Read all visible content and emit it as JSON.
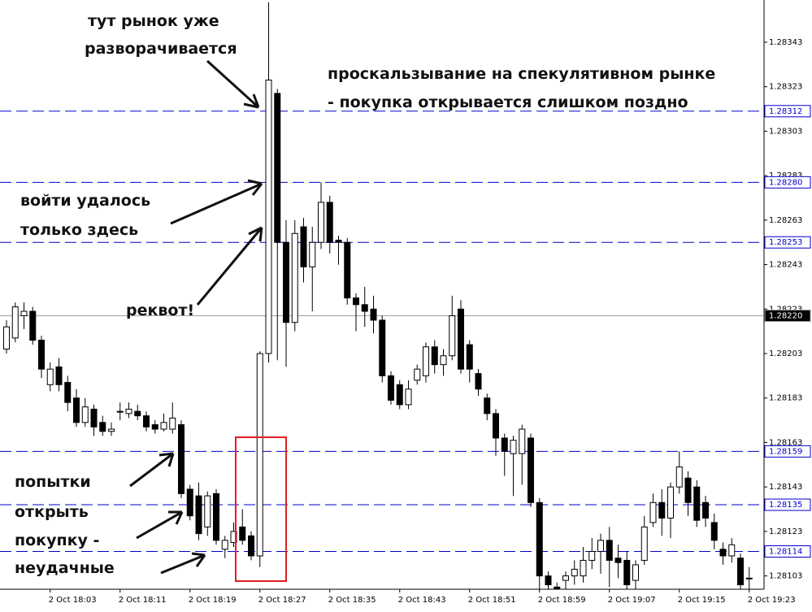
{
  "chart_data": {
    "type": "candlestick",
    "categories": [
      null,
      null,
      null,
      null,
      null,
      "2 Oct 18:03",
      null,
      null,
      null,
      null,
      null,
      null,
      null,
      "2 Oct 18:11",
      null,
      null,
      null,
      null,
      null,
      null,
      null,
      "2 Oct 18:19",
      null,
      null,
      null,
      null,
      null,
      null,
      null,
      "2 Oct 18:27",
      null,
      null,
      null,
      null,
      null,
      null,
      null,
      "2 Oct 18:35",
      null,
      null,
      null,
      null,
      null,
      null,
      null,
      "2 Oct 18:43",
      null,
      null,
      null,
      null,
      null,
      null,
      null,
      "2 Oct 18:51",
      null,
      null,
      null,
      null,
      null,
      null,
      null,
      "2 Oct 18:59",
      null,
      null,
      null,
      null,
      null,
      null,
      null,
      "2 Oct 19:07",
      null,
      null,
      null,
      null,
      null,
      null,
      null,
      "2 Oct 19:15",
      null,
      null,
      null,
      null,
      null,
      null,
      null,
      "2 Oct 19:23"
    ],
    "open": [
      1.28205,
      1.2821,
      1.2822,
      1.28222,
      1.28209,
      1.28189,
      1.28197,
      1.2819,
      1.28183,
      1.28172,
      1.28178,
      1.28172,
      1.28168,
      1.28177,
      1.28176,
      1.28177,
      1.28175,
      1.28171,
      1.28169,
      1.28169,
      1.28171,
      1.28142,
      1.28139,
      1.28125,
      1.2814,
      1.28115,
      1.28118,
      1.28125,
      1.28121,
      1.28112,
      1.28203,
      1.2832,
      1.28253,
      1.28217,
      1.2826,
      1.28242,
      1.28253,
      1.28271,
      1.28254,
      1.28253,
      1.28228,
      1.28225,
      1.28223,
      1.28218,
      1.28193,
      1.28189,
      1.2818,
      1.28191,
      1.28193,
      1.28206,
      1.28198,
      1.28202,
      1.28223,
      1.28207,
      1.28194,
      1.28183,
      1.28176,
      1.28165,
      1.28158,
      1.28158,
      1.28165,
      1.28136,
      1.28103,
      1.28098,
      1.28101,
      1.28103,
      1.28103,
      1.2811,
      1.28114,
      1.28119,
      1.28111,
      1.2811,
      1.28101,
      1.2811,
      1.28127,
      1.28136,
      1.28129,
      1.28143,
      1.28147,
      1.28143,
      1.28136,
      1.28127,
      1.28115,
      1.28112,
      1.28111,
      1.28102
    ],
    "high": [
      1.28218,
      1.28226,
      1.28226,
      1.28224,
      1.28211,
      1.28199,
      1.28201,
      1.28193,
      1.28187,
      1.28183,
      1.2818,
      1.28175,
      1.28172,
      1.28181,
      1.28181,
      1.2818,
      1.28177,
      1.28173,
      1.28176,
      1.28181,
      1.28173,
      1.28144,
      1.28145,
      1.28141,
      1.28142,
      1.28121,
      1.28127,
      1.28133,
      1.28123,
      1.28204,
      1.28361,
      1.28322,
      1.28263,
      1.28263,
      1.28264,
      1.2826,
      1.2828,
      1.28274,
      1.28256,
      1.28255,
      1.2823,
      1.28233,
      1.28229,
      1.2822,
      1.28195,
      1.28191,
      1.28191,
      1.28198,
      1.28208,
      1.28209,
      1.28205,
      1.28229,
      1.28227,
      1.28209,
      1.28196,
      1.28185,
      1.28178,
      1.28167,
      1.28166,
      1.28171,
      1.28167,
      1.28138,
      1.28105,
      1.281,
      1.28105,
      1.2811,
      1.28116,
      1.2812,
      1.28122,
      1.28125,
      1.28117,
      1.28114,
      1.2811,
      1.2813,
      1.2814,
      1.28142,
      1.28145,
      1.28159,
      1.2815,
      1.28146,
      1.28139,
      1.28131,
      1.28118,
      1.2812,
      1.28113,
      1.28107
    ],
    "low": [
      1.28203,
      1.28208,
      1.28214,
      1.28207,
      1.28192,
      1.28186,
      1.28186,
      1.28177,
      1.2817,
      1.2817,
      1.28166,
      1.28166,
      1.28166,
      1.28173,
      1.28174,
      1.28173,
      1.28168,
      1.28167,
      1.28168,
      1.28167,
      1.28138,
      1.28128,
      1.28119,
      1.28121,
      1.28117,
      1.28111,
      1.28116,
      1.28117,
      1.2811,
      1.28107,
      1.28199,
      1.282,
      1.28197,
      1.28213,
      1.28235,
      1.28222,
      1.2825,
      1.28248,
      1.28243,
      1.28225,
      1.28213,
      1.28215,
      1.28212,
      1.2819,
      1.2818,
      1.28178,
      1.28178,
      1.28189,
      1.2819,
      1.28194,
      1.28193,
      1.282,
      1.28194,
      1.2819,
      1.28184,
      1.28173,
      1.28157,
      1.28148,
      1.28139,
      1.28144,
      1.28134,
      1.28097,
      1.28097,
      1.28097,
      1.28097,
      1.28099,
      1.281,
      1.28106,
      1.28104,
      1.28098,
      1.28102,
      1.28097,
      1.28097,
      1.28108,
      1.28125,
      1.28121,
      1.2812,
      1.2814,
      1.2813,
      1.28125,
      1.28125,
      1.28115,
      1.28108,
      1.28109,
      1.28097,
      1.28097
    ],
    "close": [
      1.28215,
      1.28224,
      1.28222,
      1.28209,
      1.28196,
      1.28196,
      1.28189,
      1.28181,
      1.28172,
      1.28179,
      1.2817,
      1.28168,
      1.28169,
      1.28177,
      1.28178,
      1.28175,
      1.2817,
      1.28169,
      1.28172,
      1.28174,
      1.2814,
      1.2813,
      1.28122,
      1.28139,
      1.28119,
      1.28119,
      1.28123,
      1.28119,
      1.28112,
      1.28203,
      1.28326,
      1.28253,
      1.28217,
      1.28257,
      1.28242,
      1.28253,
      1.28271,
      1.28253,
      1.28253,
      1.28228,
      1.28225,
      1.28222,
      1.28218,
      1.28193,
      1.28182,
      1.2818,
      1.28187,
      1.28196,
      1.28206,
      1.28198,
      1.28202,
      1.2822,
      1.28196,
      1.28196,
      1.28187,
      1.28176,
      1.28165,
      1.28159,
      1.28164,
      1.28169,
      1.28136,
      1.28103,
      1.28099,
      1.28097,
      1.28103,
      1.28106,
      1.2811,
      1.28114,
      1.28119,
      1.2811,
      1.28109,
      1.28099,
      1.28108,
      1.28125,
      1.28136,
      1.28129,
      1.28143,
      1.28152,
      1.28136,
      1.28128,
      1.28129,
      1.28119,
      1.28112,
      1.28117,
      1.28099,
      1.28102
    ],
    "ylim": [
      1.28097,
      1.28362
    ],
    "yticks": [
      1.28103,
      1.28123,
      1.28143,
      1.28163,
      1.28183,
      1.28203,
      1.28223,
      1.28243,
      1.28263,
      1.28283,
      1.28303,
      1.28323,
      1.28343
    ],
    "levels": [
      {
        "value": 1.28312,
        "color": "#0000cc"
      },
      {
        "value": 1.2828,
        "label": "1.28280",
        "color": "#0000cc"
      },
      {
        "value": 1.28253,
        "color": "#0000cc"
      },
      {
        "value": 1.2822,
        "label": "1.28220",
        "color": "#a0a0a0"
      },
      {
        "value": 1.28159,
        "color": "#0000cc"
      },
      {
        "value": 1.28135,
        "color": "#0000cc"
      },
      {
        "value": 1.28114,
        "color": "#0000cc"
      }
    ],
    "up_color": "#ffffff",
    "down_color": "#000000",
    "annotations": [
      "тут рынок уже",
      "разворачивается",
      "проскальзывание на спекулятивном рынке",
      "- покупка открывается слишком поздно",
      "войти удалось",
      "только здесь",
      "реквот!",
      "попытки",
      "открыть",
      "покупку -",
      "неудачные"
    ]
  }
}
